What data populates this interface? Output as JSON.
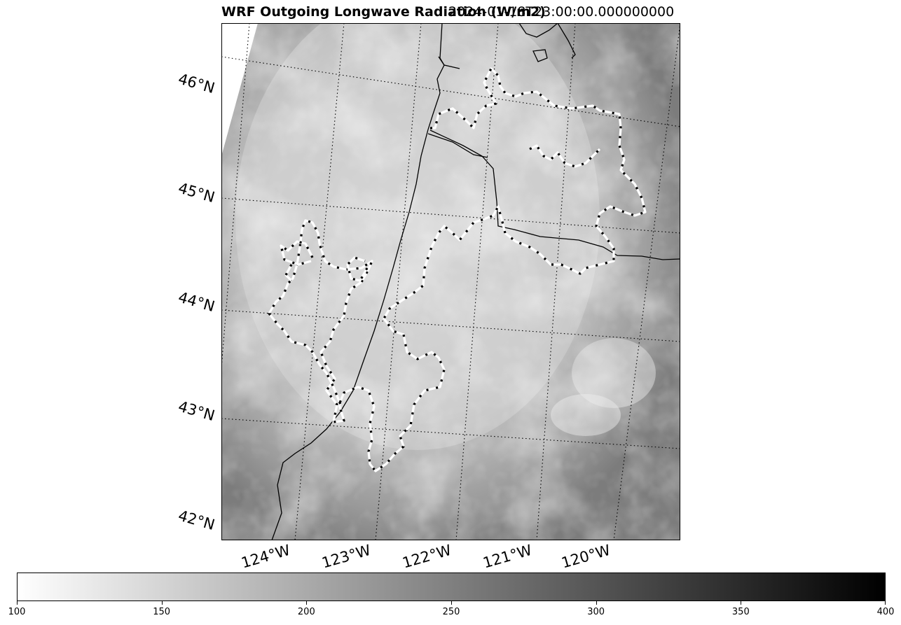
{
  "title": {
    "main": "WRF Outgoing Longwave Radiation (W/m2)",
    "timestamp": "2024-01-18T23:00:00.000000000"
  },
  "map": {
    "projection": "lambert-conformal",
    "background_field": "outgoing longwave radiation",
    "colormap": "gray_r",
    "contour_style": "white-black dashed",
    "latitude_labels": [
      "46°N",
      "45°N",
      "44°N",
      "43°N",
      "42°N"
    ],
    "longitude_labels": [
      "124°W",
      "123°W",
      "122°W",
      "121°W",
      "120°W"
    ]
  },
  "colorbar": {
    "min": 100,
    "max": 400,
    "ticks": [
      "100",
      "150",
      "200",
      "250",
      "300",
      "350",
      "400"
    ],
    "colors": [
      "#ffffff",
      "#000000"
    ]
  }
}
